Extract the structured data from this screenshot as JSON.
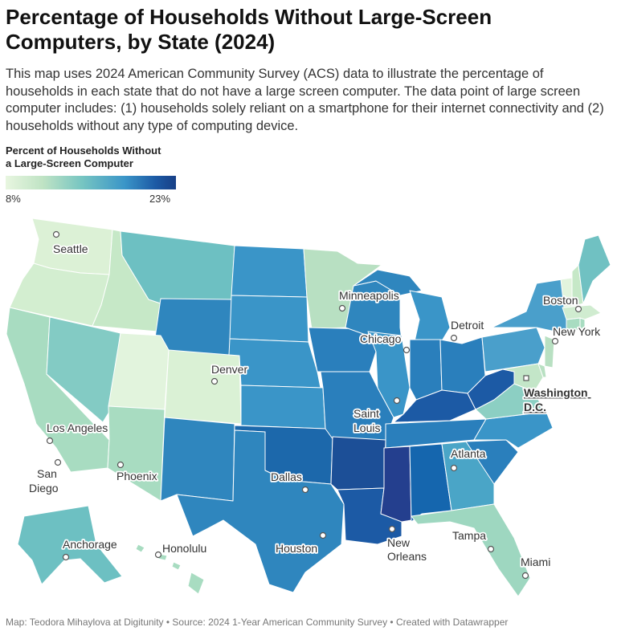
{
  "title": "Percentage of Households Without Large-Screen Computers, by State (2024)",
  "description": "This map uses 2024 American Community Survey (ACS) data to illustrate the percentage of households in each state that do not have a large screen computer. The data point of large screen computer includes: (1) households solely reliant on a smartphone for their internet connectivity and (2) households without any type of computing device.",
  "legend": {
    "title_line1": "Percent of Households Without",
    "title_line2": "a Large-Screen Computer",
    "min_label": "8%",
    "max_label": "23%",
    "colors": [
      "#e8f6e0",
      "#bfe3c4",
      "#76c5c2",
      "#3a95c8",
      "#1c5aa5",
      "#173f86"
    ]
  },
  "cities": [
    {
      "id": "seattle",
      "label": "Seattle"
    },
    {
      "id": "minneapolis",
      "label": "Minneapolis"
    },
    {
      "id": "boston",
      "label": "Boston"
    },
    {
      "id": "detroit",
      "label": "Detroit"
    },
    {
      "id": "new-york",
      "label": "New York"
    },
    {
      "id": "chicago",
      "label": "Chicago"
    },
    {
      "id": "denver",
      "label": "Denver"
    },
    {
      "id": "washington",
      "label_line1": "Washington",
      "label_line2": "D.C."
    },
    {
      "id": "saint-louis",
      "label_line1": "Saint",
      "label_line2": "Louis"
    },
    {
      "id": "los-angeles",
      "label": "Los Angeles"
    },
    {
      "id": "atlanta",
      "label": "Atlanta"
    },
    {
      "id": "san-diego",
      "label_line1": "San",
      "label_line2": "Diego"
    },
    {
      "id": "phoenix",
      "label": "Phoenix"
    },
    {
      "id": "dallas",
      "label": "Dallas"
    },
    {
      "id": "new-orleans",
      "label_line1": "New",
      "label_line2": "Orleans"
    },
    {
      "id": "tampa",
      "label": "Tampa"
    },
    {
      "id": "anchorage",
      "label": "Anchorage"
    },
    {
      "id": "honolulu",
      "label": "Honolulu"
    },
    {
      "id": "houston",
      "label": "Houston"
    },
    {
      "id": "miami",
      "label": "Miami"
    }
  ],
  "footer": "Map: Teodora Mihaylova at Digitunity • Source: 2024 1-Year American Community Survey  • Created with Datawrapper"
}
